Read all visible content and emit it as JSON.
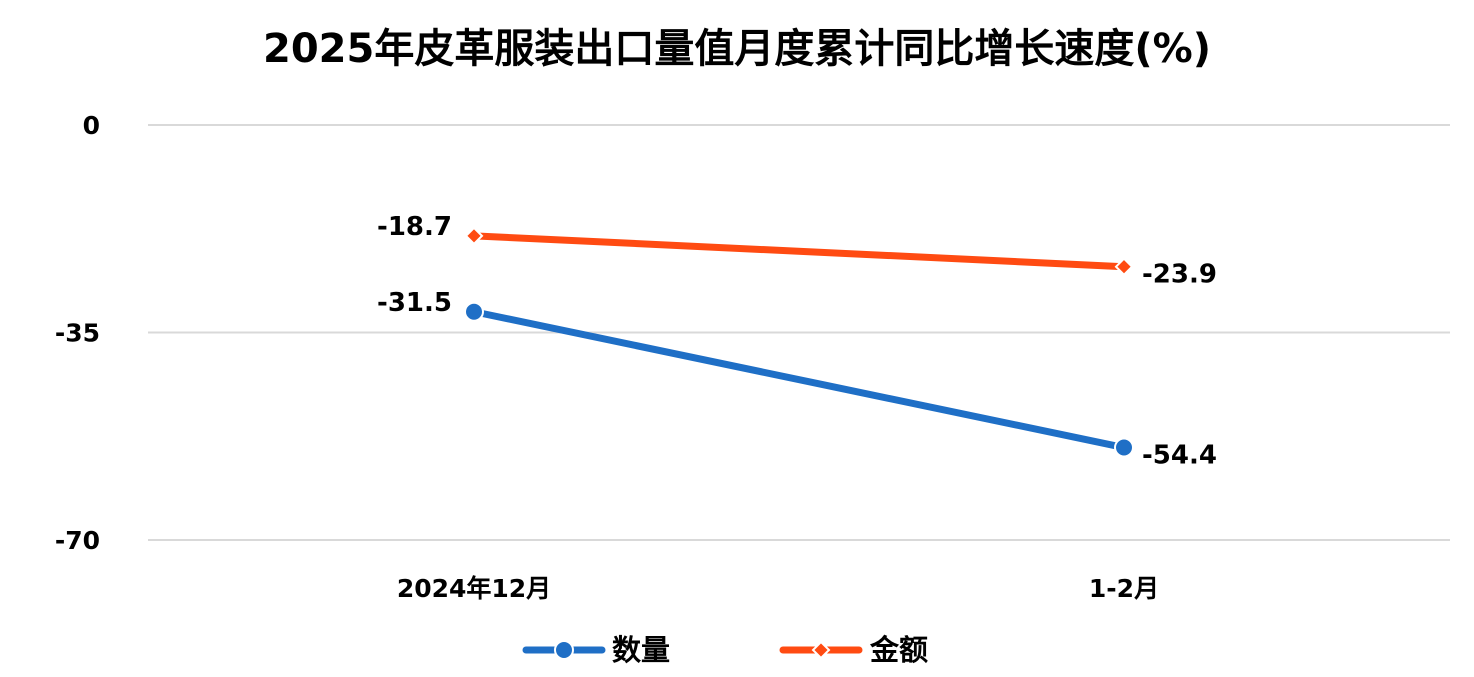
{
  "chart_data": {
    "type": "line",
    "title": "2025年皮革服装出口量值月度累计同比增长速度(%)",
    "categories": [
      "2024年12月",
      "1-2月"
    ],
    "ylim": [
      -70,
      0
    ],
    "yticks": [
      0,
      -35,
      -70
    ],
    "grid": true,
    "legend_position": "bottom",
    "series": [
      {
        "name": "数量",
        "values": [
          -31.5,
          -54.4
        ],
        "labels": [
          "-31.5",
          "-54.4"
        ],
        "color": "#1f6fc6",
        "marker": "circle"
      },
      {
        "name": "金额",
        "values": [
          -18.7,
          -23.9
        ],
        "labels": [
          "-18.7",
          "-23.9"
        ],
        "color": "#ff4b12",
        "marker": "diamond"
      }
    ]
  }
}
